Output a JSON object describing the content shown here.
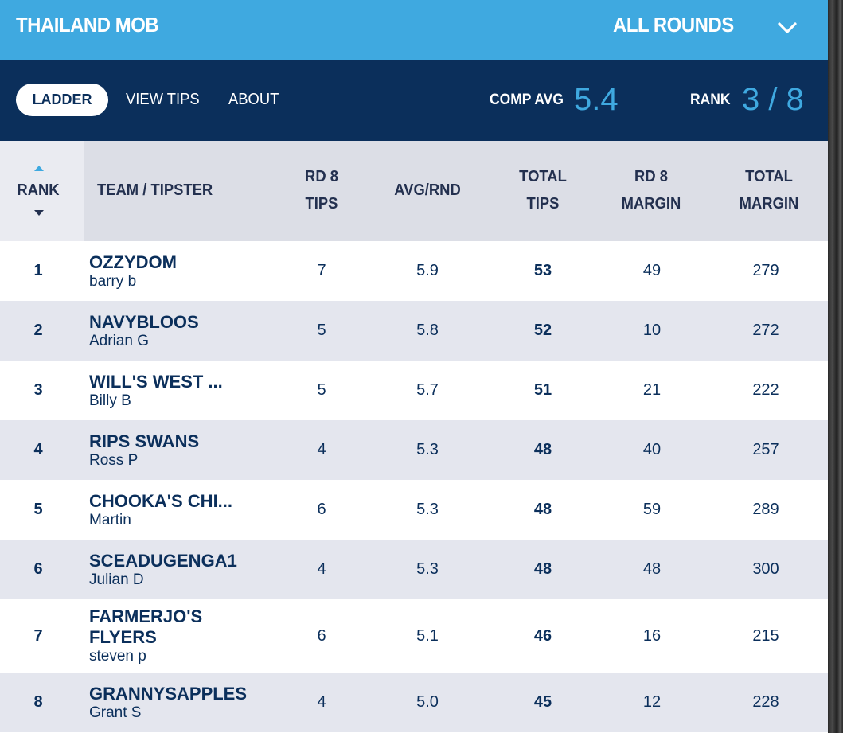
{
  "header": {
    "comp_name": "THAILAND MOB",
    "round_selector": "ALL ROUNDS"
  },
  "nav": {
    "tabs": [
      {
        "label": "LADDER",
        "active": true
      },
      {
        "label": "VIEW TIPS",
        "active": false
      },
      {
        "label": "ABOUT",
        "active": false
      }
    ],
    "comp_avg_label": "COMP AVG",
    "comp_avg_value": "5.4",
    "rank_label": "RANK",
    "rank_value": "3 / 8"
  },
  "table": {
    "columns": {
      "rank": "RANK",
      "team": "TEAM / TIPSTER",
      "rd_tips_1": "RD 8",
      "rd_tips_2": "TIPS",
      "avg": "AVG/RND",
      "total_tips_1": "TOTAL",
      "total_tips_2": "TIPS",
      "rd_margin_1": "RD 8",
      "rd_margin_2": "MARGIN",
      "total_margin_1": "TOTAL",
      "total_margin_2": "MARGIN"
    },
    "rows": [
      {
        "rank": "1",
        "team": "OZZYDOM",
        "tipster": "barry b",
        "rd_tips": "7",
        "avg": "5.9",
        "total_tips": "53",
        "rd_margin": "49",
        "total_margin": "279"
      },
      {
        "rank": "2",
        "team": "NAVYBLOOS",
        "tipster": "Adrian G",
        "rd_tips": "5",
        "avg": "5.8",
        "total_tips": "52",
        "rd_margin": "10",
        "total_margin": "272"
      },
      {
        "rank": "3",
        "team": "WILL'S WEST ...",
        "tipster": "Billy B",
        "rd_tips": "5",
        "avg": "5.7",
        "total_tips": "51",
        "rd_margin": "21",
        "total_margin": "222"
      },
      {
        "rank": "4",
        "team": "RIPS SWANS",
        "tipster": "Ross P",
        "rd_tips": "4",
        "avg": "5.3",
        "total_tips": "48",
        "rd_margin": "40",
        "total_margin": "257"
      },
      {
        "rank": "5",
        "team": "CHOOKA'S CHI...",
        "tipster": "Martin",
        "rd_tips": "6",
        "avg": "5.3",
        "total_tips": "48",
        "rd_margin": "59",
        "total_margin": "289"
      },
      {
        "rank": "6",
        "team": "SCEADUGENGA1",
        "tipster": "Julian D",
        "rd_tips": "4",
        "avg": "5.3",
        "total_tips": "48",
        "rd_margin": "48",
        "total_margin": "300"
      },
      {
        "rank": "7",
        "team": "FARMERJO'S FLYERS",
        "tipster": "steven p",
        "rd_tips": "6",
        "avg": "5.1",
        "total_tips": "46",
        "rd_margin": "16",
        "total_margin": "215"
      },
      {
        "rank": "8",
        "team": "GRANNYSAPPLES",
        "tipster": "Grant S",
        "rd_tips": "4",
        "avg": "5.0",
        "total_tips": "45",
        "rd_margin": "12",
        "total_margin": "228"
      }
    ]
  },
  "colors": {
    "top_bar": "#3fa9e0",
    "nav_bar": "#0b2f5b",
    "header_row": "#dcdee6",
    "alt_row": "#e4e6ee",
    "accent_value": "#3fa9e0"
  }
}
